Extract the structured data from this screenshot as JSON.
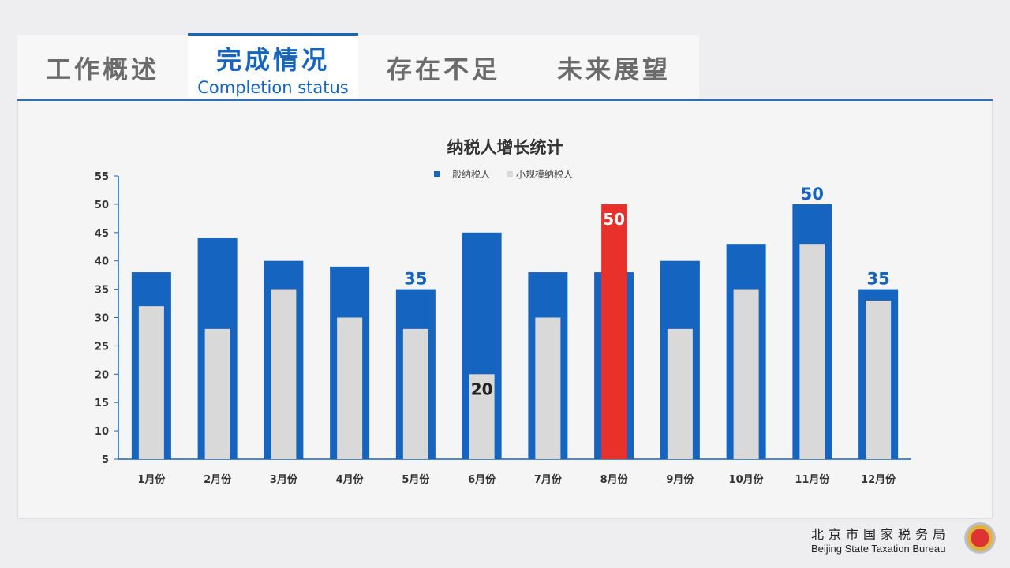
{
  "tabs": [
    {
      "label": "工作概述",
      "active": false
    },
    {
      "label": "完成情况",
      "sub": "Completion status",
      "active": true
    },
    {
      "label": "存在不足",
      "active": false
    },
    {
      "label": "未来展望",
      "active": false
    }
  ],
  "footer": {
    "cn": "北京市国家税务局",
    "en": "Beijing State Taxation Bureau"
  },
  "chart_data": {
    "type": "bar",
    "title": "纳税人增长统计",
    "categories": [
      "1月份",
      "2月份",
      "3月份",
      "4月份",
      "5月份",
      "6月份",
      "7月份",
      "8月份",
      "9月份",
      "10月份",
      "11月份",
      "12月份"
    ],
    "series": [
      {
        "name": "一般纳税人",
        "color": "#1565c0",
        "values": [
          38,
          44,
          40,
          39,
          35,
          45,
          38,
          38,
          40,
          43,
          50,
          35
        ],
        "labels": {
          "4": "35",
          "10": "50",
          "11": "35"
        }
      },
      {
        "name": "小规模纳税人",
        "color": "#d9d9d9",
        "highlight_color": "#e8312a",
        "highlight_index": 7,
        "values": [
          32,
          28,
          35,
          30,
          28,
          20,
          30,
          50,
          28,
          35,
          43,
          33
        ],
        "labels": {
          "5": "20",
          "7": "50"
        }
      }
    ],
    "ylim": [
      5,
      55
    ],
    "yticks": [
      5,
      10,
      15,
      20,
      25,
      30,
      35,
      40,
      45,
      50,
      55
    ],
    "legend": "top",
    "grid": false
  }
}
